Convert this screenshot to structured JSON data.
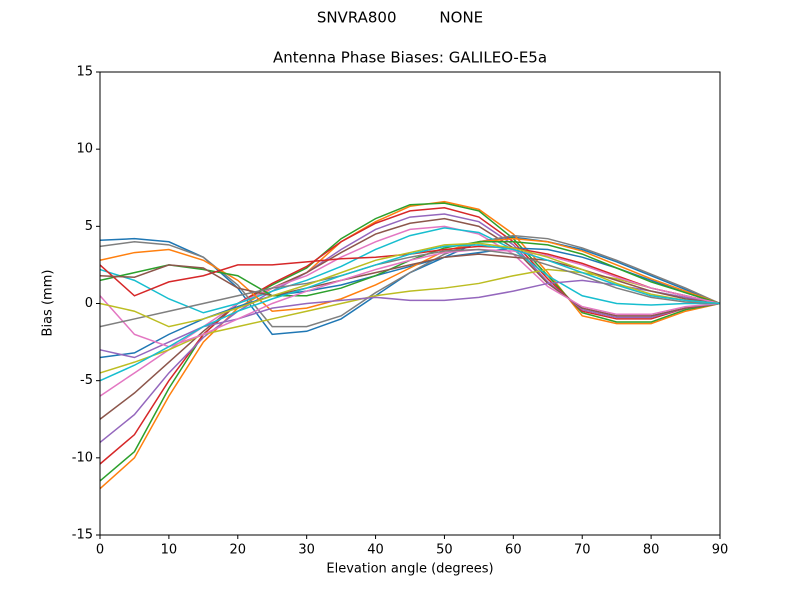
{
  "chart_data": {
    "type": "line",
    "suptitle": "SNVRA800         NONE",
    "title": "Antenna Phase Biases: GALILEO-E5a",
    "xlabel": "Elevation angle (degrees)",
    "ylabel": "Bias (mm)",
    "x": [
      0,
      5,
      10,
      15,
      20,
      25,
      30,
      35,
      40,
      45,
      50,
      55,
      60,
      65,
      70,
      75,
      80,
      85,
      90
    ],
    "xlim": [
      0,
      90
    ],
    "xticks": [
      0,
      10,
      20,
      30,
      40,
      50,
      60,
      70,
      80,
      90
    ],
    "ylim": [
      -15,
      15
    ],
    "yticks": [
      -15,
      -10,
      -5,
      0,
      5,
      10,
      15
    ],
    "grid": false,
    "series": [
      {
        "color": "#1f77b4",
        "values": [
          4.1,
          4.2,
          4,
          3,
          1,
          -2,
          -1.8,
          -1,
          0.5,
          2,
          3,
          4,
          4.3,
          4,
          3.5,
          2.7,
          1.8,
          0.9,
          0
        ]
      },
      {
        "color": "#ff7f0e",
        "values": [
          -12,
          -10,
          -6,
          -2.5,
          -0.3,
          1,
          2,
          4,
          5.3,
          6.3,
          6.6,
          6.1,
          4.5,
          2,
          -0.8,
          -1.3,
          -1.3,
          -0.5,
          0
        ]
      },
      {
        "color": "#2ca02c",
        "values": [
          -11.5,
          -9.6,
          -5.5,
          -2,
          0,
          1.2,
          2.3,
          4.2,
          5.5,
          6.4,
          6.5,
          6,
          4.2,
          1.8,
          -0.6,
          -1.2,
          -1.2,
          -0.4,
          0
        ]
      },
      {
        "color": "#d62728",
        "values": [
          -10.4,
          -8.5,
          -5,
          -2,
          0,
          1.3,
          2.4,
          4,
          5.2,
          6,
          6.2,
          5.6,
          4,
          1.6,
          -0.5,
          -1,
          -1,
          -0.3,
          0
        ]
      },
      {
        "color": "#9467bd",
        "values": [
          -9,
          -7.2,
          -4.5,
          -2.2,
          -0.5,
          0.8,
          2,
          3.5,
          4.8,
          5.6,
          5.8,
          5.3,
          3.8,
          1.4,
          -0.4,
          -0.9,
          -0.9,
          -0.3,
          0
        ]
      },
      {
        "color": "#8c564b",
        "values": [
          -7.5,
          -5.8,
          -3.8,
          -1.8,
          0,
          1,
          2,
          3.3,
          4.5,
          5.2,
          5.5,
          5,
          3.6,
          1.3,
          -0.3,
          -0.8,
          -0.8,
          -0.3,
          0
        ]
      },
      {
        "color": "#e377c2",
        "values": [
          -6,
          -4.5,
          -3,
          -1.5,
          0,
          1,
          1.8,
          3,
          4,
          4.8,
          5,
          4.5,
          3.2,
          1.1,
          -0.2,
          -0.7,
          -0.7,
          -0.2,
          0
        ]
      },
      {
        "color": "#7f7f7f",
        "values": [
          3.7,
          4,
          3.8,
          3,
          1.2,
          -1.5,
          -1.5,
          -0.8,
          0.7,
          2,
          3.2,
          4,
          4.4,
          4.2,
          3.6,
          2.8,
          1.9,
          1,
          0
        ]
      },
      {
        "color": "#bcbd22",
        "values": [
          -4.5,
          -3.8,
          -3,
          -2,
          -1.5,
          -1,
          -0.5,
          0,
          0.5,
          0.8,
          1,
          1.3,
          1.8,
          2.2,
          2,
          1.6,
          1,
          0.5,
          0
        ]
      },
      {
        "color": "#17becf",
        "values": [
          2.2,
          1.5,
          0.3,
          -0.6,
          0,
          0.8,
          1.5,
          2.4,
          3.5,
          4.4,
          4.9,
          4.6,
          3.5,
          1.8,
          0.5,
          0,
          -0.1,
          0,
          0
        ]
      },
      {
        "color": "#1f77b4",
        "values": [
          -3.5,
          -3.2,
          -2,
          -1,
          -0.2,
          0.5,
          0.8,
          1.2,
          1.8,
          2.4,
          3,
          3.3,
          3.6,
          3.5,
          3,
          2.3,
          1.5,
          0.7,
          0
        ]
      },
      {
        "color": "#ff7f0e",
        "values": [
          2.8,
          3.3,
          3.5,
          2.8,
          1.5,
          -0.5,
          -0.3,
          0.3,
          1.2,
          2.3,
          3.4,
          4,
          4.2,
          4,
          3.4,
          2.5,
          1.6,
          0.8,
          0
        ]
      },
      {
        "color": "#2ca02c",
        "values": [
          1.5,
          2,
          2.5,
          2.2,
          1.8,
          0.5,
          0.5,
          1,
          1.8,
          2.8,
          3.6,
          4,
          4,
          3.8,
          3.2,
          2.3,
          1.4,
          0.7,
          0
        ]
      },
      {
        "color": "#d62728",
        "values": [
          2.5,
          0.5,
          1.4,
          1.8,
          2.5,
          2.5,
          2.7,
          2.9,
          3,
          3.2,
          3.5,
          3.7,
          3.6,
          3.2,
          2.6,
          1.8,
          1,
          0.5,
          0
        ]
      },
      {
        "color": "#9467bd",
        "values": [
          -3,
          -3.5,
          -2.5,
          -1.5,
          -1,
          -0.3,
          0,
          0.2,
          0.4,
          0.2,
          0.2,
          0.4,
          0.8,
          1.3,
          1.5,
          1.2,
          0.8,
          0.4,
          0
        ]
      },
      {
        "color": "#8c564b",
        "values": [
          1.8,
          1.7,
          2.5,
          2.3,
          1,
          0.5,
          1,
          1.5,
          2,
          2.5,
          3,
          3.2,
          3,
          2.8,
          2.2,
          1.5,
          0.8,
          0.3,
          0
        ]
      },
      {
        "color": "#e377c2",
        "values": [
          0.5,
          -2,
          -2.8,
          -2,
          -1,
          0,
          0.8,
          1.5,
          2.2,
          2.8,
          3.3,
          3.5,
          3.4,
          3.1,
          2.5,
          1.7,
          1,
          0.5,
          0
        ]
      },
      {
        "color": "#7f7f7f",
        "values": [
          -1.5,
          -1,
          -0.5,
          0,
          0.5,
          1,
          1.3,
          1.8,
          2.5,
          3,
          3.4,
          3.5,
          3.2,
          2.5,
          1.8,
          1,
          0.4,
          0.1,
          0
        ]
      },
      {
        "color": "#bcbd22",
        "values": [
          0,
          -0.5,
          -1.5,
          -1,
          -0.3,
          0.5,
          1.2,
          2,
          2.8,
          3.3,
          3.8,
          3.9,
          3.6,
          3,
          2.2,
          1.3,
          0.6,
          0.2,
          0
        ]
      },
      {
        "color": "#17becf",
        "values": [
          -5,
          -4,
          -2.8,
          -1.5,
          -0.5,
          0.3,
          1,
          1.8,
          2.5,
          3.2,
          3.7,
          3.8,
          3.5,
          2.8,
          2,
          1.2,
          0.5,
          0.2,
          0
        ]
      }
    ]
  }
}
